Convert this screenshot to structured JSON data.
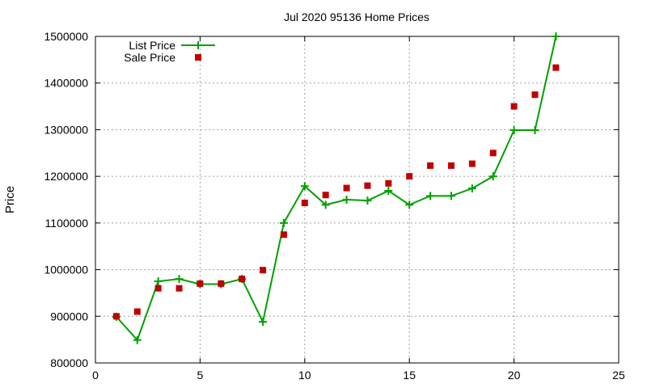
{
  "chart_data": {
    "type": "line",
    "title": "Jul 2020 95136 Home Prices",
    "xlabel": "",
    "ylabel": "Price",
    "xlim": [
      0,
      25
    ],
    "ylim": [
      800000,
      1500000
    ],
    "xticks": [
      "0",
      "5",
      "10",
      "15",
      "20",
      "25"
    ],
    "yticks": [
      "800000",
      "900000",
      "1000000",
      "1100000",
      "1200000",
      "1300000",
      "1400000",
      "1500000"
    ],
    "grid": true,
    "legend_position": "top-left",
    "series": [
      {
        "name": "List Price",
        "style": "line-with-plus-markers",
        "color": "#00a000",
        "x": [
          1,
          2,
          3,
          4,
          5,
          6,
          7,
          8,
          9,
          10,
          11,
          12,
          13,
          14,
          15,
          16,
          17,
          18,
          19,
          20,
          21,
          22
        ],
        "y": [
          899000,
          849000,
          975000,
          980000,
          969000,
          969000,
          980000,
          888000,
          1100000,
          1179000,
          1139000,
          1150000,
          1148000,
          1169000,
          1139000,
          1158000,
          1158000,
          1174000,
          1200000,
          1299000,
          1299000,
          1500000
        ]
      },
      {
        "name": "Sale Price",
        "style": "square-markers",
        "color": "#c00000",
        "x": [
          1,
          2,
          3,
          4,
          5,
          6,
          7,
          8,
          9,
          10,
          11,
          12,
          13,
          14,
          15,
          16,
          17,
          18,
          19,
          20,
          21,
          22
        ],
        "y": [
          900000,
          910000,
          960000,
          960000,
          970000,
          970000,
          980000,
          999000,
          1075000,
          1143000,
          1160000,
          1175000,
          1180000,
          1185000,
          1200000,
          1223000,
          1223000,
          1227000,
          1250000,
          1350000,
          1375000,
          1433000
        ]
      }
    ]
  }
}
